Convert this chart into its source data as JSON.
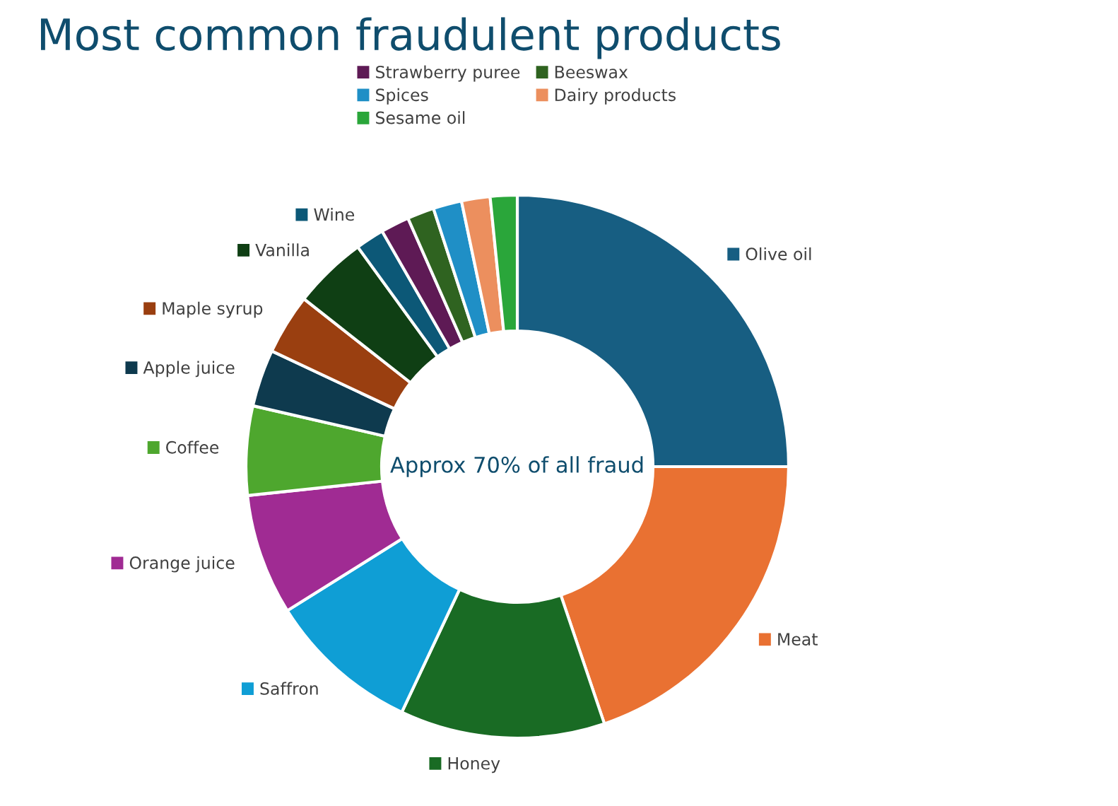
{
  "chart_data": {
    "type": "donut",
    "title": "Most common fraudulent products",
    "categories": [
      "Olive oil",
      "Meat",
      "Honey",
      "Saffron",
      "Orange juice",
      "Coffee",
      "Apple juice",
      "Maple syrup",
      "Vanilla",
      "Wine",
      "Strawberry puree",
      "Beeswax",
      "Spices",
      "Dairy products",
      "Sesame oil"
    ],
    "values": [
      25,
      19.8,
      12.2,
      9.1,
      7.2,
      5.3,
      3.4,
      3.6,
      4.4,
      1.7,
      1.7,
      1.6,
      1.7,
      1.7,
      1.6
    ],
    "colors": [
      "#175e82",
      "#e97132",
      "#196b24",
      "#0f9ed5",
      "#a02b93",
      "#4ea72e",
      "#0e3a4e",
      "#9a3f10",
      "#0f3f14",
      "#0c5877",
      "#5e1a55",
      "#2f6320",
      "#1f8fc6",
      "#ec8f5e",
      "#2aa63a"
    ],
    "legend": "top",
    "annotations": [
      "Approx 70% of all fraud"
    ]
  }
}
